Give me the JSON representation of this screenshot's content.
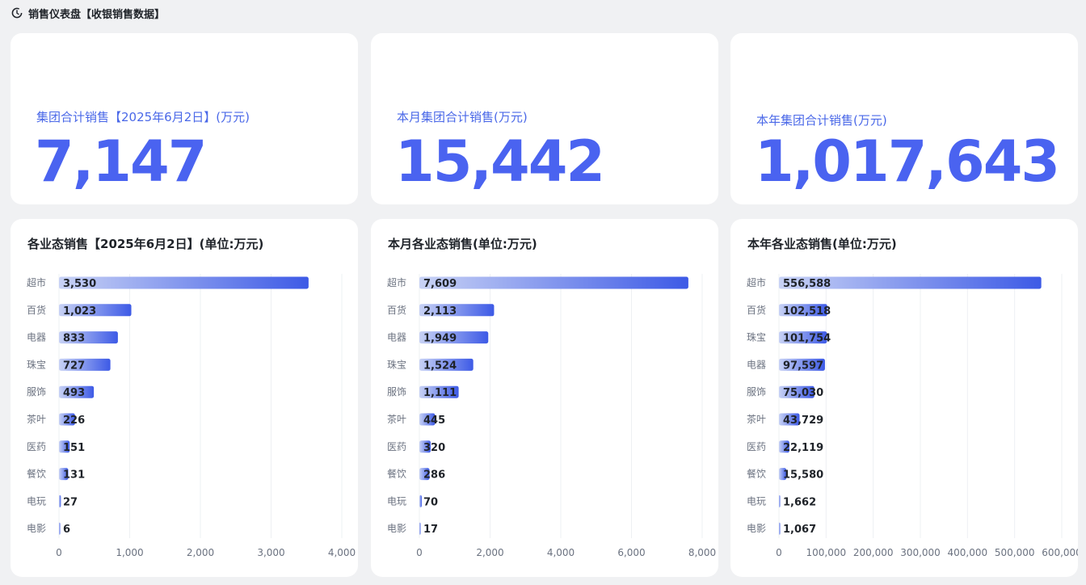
{
  "header": {
    "title": "销售仪表盘【收银销售数据】",
    "icon": "clock-refresh-icon"
  },
  "kpis": [
    {
      "label": "集团合计销售【2025年6月2日】(万元)",
      "value": "7,147"
    },
    {
      "label": "本月集团合计销售(万元)",
      "value": "15,442"
    },
    {
      "label": "本年集团合计销售(万元)",
      "value": "1,017,643"
    }
  ],
  "colors": {
    "accent": "#4a63f0",
    "bar_start": "#c8d2f5",
    "bar_end": "#3d5ae6"
  },
  "chart_data": [
    {
      "type": "bar",
      "orientation": "horizontal",
      "title": "各业态销售【2025年6月2日】(单位:万元)",
      "categories": [
        "超市",
        "百货",
        "电器",
        "珠宝",
        "服饰",
        "茶叶",
        "医药",
        "餐饮",
        "电玩",
        "电影"
      ],
      "values": [
        3530,
        1023,
        833,
        727,
        493,
        226,
        151,
        131,
        27,
        6
      ],
      "value_labels": [
        "3,530",
        "1,023",
        "833",
        "727",
        "493",
        "226",
        "151",
        "131",
        "27",
        "6"
      ],
      "xlim": [
        0,
        4000
      ],
      "ticks": [
        0,
        1000,
        2000,
        3000,
        4000
      ],
      "tick_labels": [
        "0",
        "1,000",
        "2,000",
        "3,000",
        "4,000"
      ],
      "grid": true
    },
    {
      "type": "bar",
      "orientation": "horizontal",
      "title": "本月各业态销售(单位:万元)",
      "categories": [
        "超市",
        "百货",
        "电器",
        "珠宝",
        "服饰",
        "茶叶",
        "医药",
        "餐饮",
        "电玩",
        "电影"
      ],
      "values": [
        7609,
        2113,
        1949,
        1524,
        1111,
        445,
        320,
        286,
        70,
        17
      ],
      "value_labels": [
        "7,609",
        "2,113",
        "1,949",
        "1,524",
        "1,111",
        "445",
        "320",
        "286",
        "70",
        "17"
      ],
      "xlim": [
        0,
        8000
      ],
      "ticks": [
        0,
        2000,
        4000,
        6000,
        8000
      ],
      "tick_labels": [
        "0",
        "2,000",
        "4,000",
        "6,000",
        "8,000"
      ],
      "grid": true
    },
    {
      "type": "bar",
      "orientation": "horizontal",
      "title": "本年各业态销售(单位:万元)",
      "categories": [
        "超市",
        "百货",
        "珠宝",
        "电器",
        "服饰",
        "茶叶",
        "医药",
        "餐饮",
        "电玩",
        "电影"
      ],
      "values": [
        556588,
        102518,
        101754,
        97597,
        75030,
        43729,
        22119,
        15580,
        1662,
        1067
      ],
      "value_labels": [
        "556,588",
        "102,518",
        "101,754",
        "97,597",
        "75,030",
        "43,729",
        "22,119",
        "15,580",
        "1,662",
        "1,067"
      ],
      "xlim": [
        0,
        600000
      ],
      "ticks": [
        0,
        100000,
        200000,
        300000,
        400000,
        500000,
        600000
      ],
      "tick_labels": [
        "0",
        "100,000",
        "200,000",
        "300,000",
        "400,000",
        "500,000",
        "600,000"
      ],
      "grid": true
    }
  ]
}
